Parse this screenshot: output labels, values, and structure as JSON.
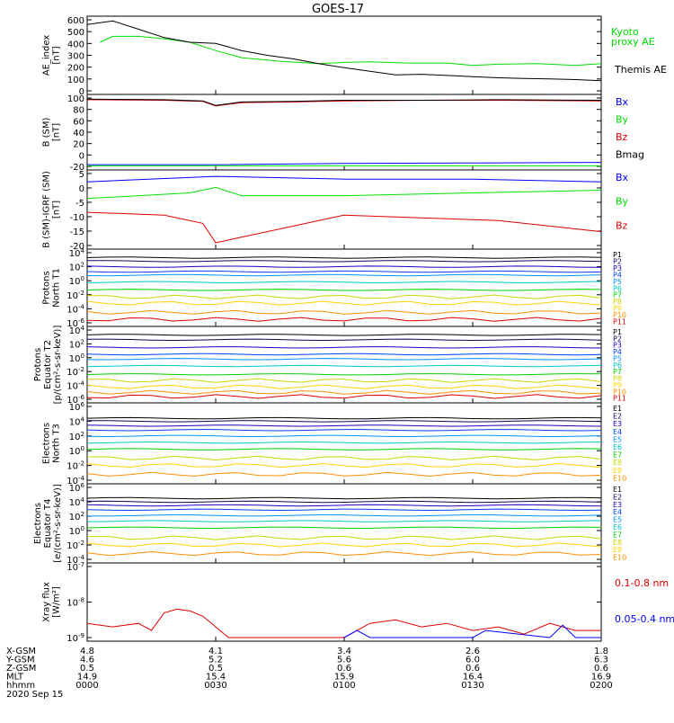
{
  "title": "GOES-17",
  "colors": {
    "black": "#000000",
    "blue": "#0000ff",
    "green": "#00e000",
    "red": "#e00000",
    "kyoto": "#00dd00",
    "p": [
      "#000000",
      "#1a0060",
      "#1f00c0",
      "#0040ff",
      "#0090ff",
      "#00c8c8",
      "#00d000",
      "#c8d800",
      "#ffd200",
      "#ff9000",
      "#e00000"
    ],
    "e": [
      "#000000",
      "#1a0060",
      "#1f00c0",
      "#0040ff",
      "#0090ff",
      "#00c8c8",
      "#00d000",
      "#c8d800",
      "#ffd200",
      "#ff9000",
      "#e00000"
    ]
  },
  "panels": [
    {
      "id": "ae",
      "ylabel": [
        "AE_index",
        "[nT]"
      ],
      "ticks": [
        "600",
        "500",
        "400",
        "300",
        "200",
        "100",
        "0"
      ],
      "legend": [
        {
          "text": "Kyoto",
          "color": "kyoto"
        },
        {
          "text": "proxy AE",
          "color": "kyoto"
        },
        {
          "text": "Themis AE",
          "color": "black"
        }
      ]
    },
    {
      "id": "bsm",
      "ylabel": [
        "B (SM)",
        "[nT]"
      ],
      "ticks": [
        "100",
        "80",
        "60",
        "40",
        "20",
        "0",
        "-20"
      ],
      "legend": [
        {
          "text": "Bx",
          "color": "blue"
        },
        {
          "text": "By",
          "color": "green"
        },
        {
          "text": "Bz",
          "color": "red"
        },
        {
          "text": "Bmag",
          "color": "black"
        }
      ]
    },
    {
      "id": "bigrf",
      "ylabel": [
        "B (SM)-IGRF (SM)",
        "[nT]"
      ],
      "ticks": [
        "5",
        "0",
        "-5",
        "-10",
        "-15",
        "-20"
      ],
      "legend": [
        {
          "text": "Bx",
          "color": "blue"
        },
        {
          "text": "By",
          "color": "green"
        },
        {
          "text": "Bz",
          "color": "red"
        }
      ]
    },
    {
      "id": "pnt1",
      "ylabel": [
        "Protons",
        "North T1"
      ],
      "ticks": [
        "10^4",
        "10^2",
        "10^0",
        "10^-2",
        "10^-4",
        "10^-6"
      ],
      "legend": [
        "P1",
        "P2",
        "P3",
        "P4",
        "P5",
        "P6",
        "P7",
        "P8",
        "P9",
        "P10",
        "P11"
      ]
    },
    {
      "id": "pet2",
      "ylabel": [
        "Protons",
        "Equator T2",
        "[p/(cm²-s-sr-keV)]"
      ],
      "ticks": [
        "10^4",
        "10^2",
        "10^0",
        "10^-2",
        "10^-4",
        "10^-6"
      ],
      "legend": [
        "P1",
        "P2",
        "P3",
        "P4",
        "P5",
        "P6",
        "P7",
        "P8",
        "P9",
        "P10",
        "P11"
      ]
    },
    {
      "id": "ent3",
      "ylabel": [
        "Electrons",
        "North T3"
      ],
      "ticks": [
        "10^6",
        "10^4",
        "10^2",
        "10^0",
        "10^-2",
        "10^-4"
      ],
      "legend": [
        "E1",
        "E2",
        "E3",
        "E4",
        "E5",
        "E6",
        "E7",
        "E8",
        "E9",
        "E10"
      ]
    },
    {
      "id": "eet4",
      "ylabel": [
        "Electrons",
        "Equator T4",
        "[e/(cm²-s-sr-keV)]"
      ],
      "ticks": [
        "10^6",
        "10^4",
        "10^2",
        "10^0",
        "10^-2",
        "10^-4"
      ],
      "legend": [
        "E1",
        "E2",
        "E3",
        "E4",
        "E5",
        "E6",
        "E7",
        "E8",
        "E9",
        "E10"
      ]
    },
    {
      "id": "xray",
      "ylabel": [
        "Xray flux",
        "[W/m²]"
      ],
      "ticks": [
        "10^-7",
        "10^-8",
        "10^-9"
      ],
      "legend": [
        {
          "text": "0.1-0.8 nm",
          "color": "red"
        },
        {
          "text": "0.05-0.4 nm",
          "color": "blue"
        }
      ]
    }
  ],
  "orbit": {
    "rows": [
      "X-GSM",
      "Y-GSM",
      "Z-GSM",
      "MLT",
      "hhmm"
    ],
    "date": "2020 Sep 15",
    "cols": [
      [
        "4.8",
        "4.6",
        "0.5",
        "14.9",
        "0000"
      ],
      [
        "4.1",
        "5.2",
        "0.5",
        "15.4",
        "0030"
      ],
      [
        "3.4",
        "5.6",
        "0.6",
        "15.9",
        "0100"
      ],
      [
        "2.6",
        "6.0",
        "0.6",
        "16.4",
        "0130"
      ],
      [
        "1.8",
        "6.3",
        "0.6",
        "16.9",
        "0200"
      ]
    ]
  },
  "chart_data": [
    {
      "type": "line",
      "title": "GOES-17",
      "ylabel": "AE_index [nT]",
      "ylim": [
        0,
        600
      ],
      "x_time": [
        "0000",
        "0030",
        "0100",
        "0130",
        "0200"
      ],
      "series": [
        {
          "name": "Kyoto proxy AE",
          "color": "kyoto",
          "x": [
            0.05,
            0.1,
            0.2,
            0.3,
            0.4,
            0.5,
            0.6,
            0.75,
            0.9,
            1.0,
            1.1,
            1.25,
            1.4,
            1.5,
            1.6,
            1.75,
            1.9,
            2.0
          ],
          "y": [
            410,
            460,
            460,
            440,
            410,
            340,
            280,
            250,
            230,
            240,
            245,
            235,
            235,
            215,
            225,
            230,
            215,
            230
          ]
        },
        {
          "name": "Themis AE",
          "color": "black",
          "x": [
            0.0,
            0.1,
            0.2,
            0.3,
            0.4,
            0.5,
            0.6,
            0.7,
            0.8,
            0.9,
            1.0,
            1.1,
            1.2,
            1.3,
            1.4,
            1.5,
            1.6,
            1.7,
            1.8,
            1.9,
            2.0
          ],
          "y": [
            560,
            590,
            520,
            450,
            410,
            400,
            340,
            300,
            270,
            230,
            195,
            165,
            135,
            140,
            130,
            120,
            110,
            105,
            100,
            95,
            85
          ]
        }
      ]
    },
    {
      "type": "line",
      "ylabel": "B (SM) [nT]",
      "ylim": [
        -20,
        100
      ],
      "series": [
        {
          "name": "Bx",
          "color": "blue",
          "x": [
            0,
            0.5,
            1.0,
            1.5,
            2.0
          ],
          "y": [
            -17,
            -17,
            -15,
            -14,
            -13
          ]
        },
        {
          "name": "By",
          "color": "green",
          "x": [
            0,
            0.5,
            1.0,
            1.5,
            2.0
          ],
          "y": [
            -19,
            -19,
            -19,
            -19,
            -19
          ]
        },
        {
          "name": "Bz",
          "color": "red",
          "x": [
            0,
            0.3,
            0.45,
            0.5,
            0.6,
            0.8,
            1.0,
            1.3,
            1.6,
            2.0
          ],
          "y": [
            97,
            96,
            94,
            86,
            92,
            93,
            95,
            96,
            96,
            95
          ]
        },
        {
          "name": "Bmag",
          "color": "black",
          "x": [
            0,
            0.3,
            0.45,
            0.5,
            0.6,
            0.8,
            1.0,
            1.3,
            1.6,
            2.0
          ],
          "y": [
            98,
            97,
            95,
            87,
            93,
            94,
            96,
            96,
            97,
            96
          ]
        }
      ]
    },
    {
      "type": "line",
      "ylabel": "B (SM)-IGRF (SM) [nT]",
      "ylim": [
        -20,
        6
      ],
      "series": [
        {
          "name": "Bx",
          "color": "blue",
          "x": [
            0,
            0.5,
            1.0,
            1.5,
            2.0
          ],
          "y": [
            3,
            5,
            4,
            4,
            3
          ]
        },
        {
          "name": "By",
          "color": "green",
          "x": [
            0,
            0.4,
            0.5,
            0.6,
            1.0,
            1.5,
            2.0
          ],
          "y": [
            -3,
            -1,
            1,
            -2,
            -2,
            -1,
            0
          ]
        },
        {
          "name": "Bz",
          "color": "red",
          "x": [
            0,
            0.3,
            0.45,
            0.5,
            0.6,
            0.8,
            1.0,
            1.3,
            1.6,
            2.0
          ],
          "y": [
            -8,
            -9,
            -12,
            -19,
            -17,
            -13,
            -9,
            -10,
            -11,
            -15
          ]
        }
      ]
    },
    {
      "type": "line",
      "ylabel": "Protons North T1",
      "yscale": "log",
      "ylim": [
        -6,
        4
      ],
      "series_log10": [
        {
          "name": "P1",
          "y": 3.3
        },
        {
          "name": "P2",
          "y": 2.8
        },
        {
          "name": "P3",
          "y": 2.0
        },
        {
          "name": "P4",
          "y": 1.3
        },
        {
          "name": "P5",
          "y": 0.8
        },
        {
          "name": "P6",
          "y": -0.2
        },
        {
          "name": "P7",
          "y": -1.3
        },
        {
          "name": "P8",
          "y": -2.3
        },
        {
          "name": "P9",
          "y": -3.2
        },
        {
          "name": "P10",
          "y": -4.5
        },
        {
          "name": "P11",
          "y": -5.5
        }
      ]
    },
    {
      "type": "line",
      "ylabel": "Protons Equator T2 [p/(cm²-s-sr-keV)]",
      "yscale": "log",
      "ylim": [
        -6,
        4
      ],
      "series_log10": [
        {
          "name": "P1",
          "y": 3.3
        },
        {
          "name": "P2",
          "y": 2.6
        },
        {
          "name": "P3",
          "y": 1.5
        },
        {
          "name": "P4",
          "y": 0.5
        },
        {
          "name": "P5",
          "y": -0.2
        },
        {
          "name": "P6",
          "y": -1.2
        },
        {
          "name": "P7",
          "y": -2.4
        },
        {
          "name": "P8",
          "y": -3.3
        },
        {
          "name": "P9",
          "y": -4.2
        },
        {
          "name": "P10",
          "y": -5.0
        },
        {
          "name": "P11",
          "y": -5.6
        }
      ]
    },
    {
      "type": "line",
      "ylabel": "Electrons North T3",
      "yscale": "log",
      "ylim": [
        -4,
        6
      ],
      "series_log10": [
        {
          "name": "E1",
          "y": 4.4
        },
        {
          "name": "E2",
          "y": 4.0
        },
        {
          "name": "E3",
          "y": 3.4
        },
        {
          "name": "E4",
          "y": 2.8
        },
        {
          "name": "E5",
          "y": 2.0
        },
        {
          "name": "E6",
          "y": 1.1
        },
        {
          "name": "E7",
          "y": 0.2
        },
        {
          "name": "E8",
          "y": -1.0
        },
        {
          "name": "E9",
          "y": -2.0
        },
        {
          "name": "E10",
          "y": -3.2
        }
      ]
    },
    {
      "type": "line",
      "ylabel": "Electrons Equator T4 [e/(cm²-s-sr-keV)]",
      "yscale": "log",
      "ylim": [
        -4,
        6
      ],
      "series_log10": [
        {
          "name": "E1",
          "y": 4.5
        },
        {
          "name": "E2",
          "y": 4.0
        },
        {
          "name": "E3",
          "y": 3.5
        },
        {
          "name": "E4",
          "y": 2.9
        },
        {
          "name": "E5",
          "y": 2.1
        },
        {
          "name": "E6",
          "y": 1.3
        },
        {
          "name": "E7",
          "y": 0.4
        },
        {
          "name": "E8",
          "y": -1.0
        },
        {
          "name": "E9",
          "y": -2.0
        },
        {
          "name": "E10",
          "y": -3.2
        }
      ]
    },
    {
      "type": "line",
      "ylabel": "Xray flux [W/m²]",
      "yscale": "log",
      "ylim": [
        -9,
        -7
      ],
      "series": [
        {
          "name": "0.1-0.8 nm",
          "color": "red",
          "x": [
            0,
            0.1,
            0.2,
            0.25,
            0.3,
            0.35,
            0.4,
            0.45,
            0.5,
            0.55,
            0.6,
            1.0,
            1.1,
            1.2,
            1.3,
            1.4,
            1.5,
            1.6,
            1.7,
            1.8,
            1.9,
            2.0
          ],
          "y": [
            -8.6,
            -8.7,
            -8.6,
            -8.8,
            -8.3,
            -8.2,
            -8.25,
            -8.4,
            -8.7,
            -9.0,
            -9.0,
            -9.0,
            -8.6,
            -8.5,
            -8.7,
            -8.6,
            -8.8,
            -8.7,
            -8.9,
            -8.6,
            -8.8,
            -8.8
          ]
        },
        {
          "name": "0.05-0.4 nm",
          "color": "blue",
          "x": [
            1.0,
            1.05,
            1.1,
            1.5,
            1.55,
            1.8,
            1.85,
            1.9,
            2.0
          ],
          "y": [
            -9.0,
            -8.8,
            -9.0,
            -9.0,
            -8.8,
            -9.0,
            -8.65,
            -9.0,
            -9.0
          ]
        }
      ]
    }
  ]
}
